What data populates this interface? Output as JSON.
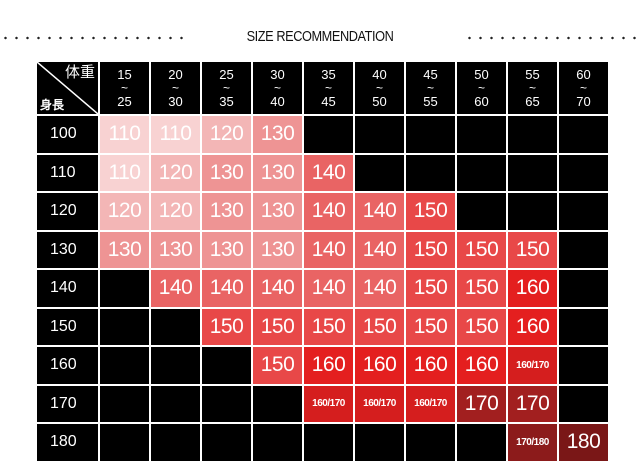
{
  "title": "SIZE RECOMMENDATION",
  "corner": {
    "weight_label": "体重",
    "height_label": "身長"
  },
  "weight_ranges": [
    {
      "from": "15",
      "to": "25"
    },
    {
      "from": "20",
      "to": "30"
    },
    {
      "from": "25",
      "to": "35"
    },
    {
      "from": "30",
      "to": "40"
    },
    {
      "from": "35",
      "to": "45"
    },
    {
      "from": "40",
      "to": "50"
    },
    {
      "from": "45",
      "to": "55"
    },
    {
      "from": "50",
      "to": "60"
    },
    {
      "from": "55",
      "to": "65"
    },
    {
      "from": "60",
      "to": "70"
    }
  ],
  "range_separator": "~",
  "rows": [
    {
      "height": "100",
      "sizes": [
        "110",
        "110",
        "120",
        "130",
        "",
        "",
        "",
        "",
        "",
        ""
      ]
    },
    {
      "height": "110",
      "sizes": [
        "110",
        "120",
        "130",
        "130",
        "140",
        "",
        "",
        "",
        "",
        ""
      ]
    },
    {
      "height": "120",
      "sizes": [
        "120",
        "120",
        "130",
        "130",
        "140",
        "140",
        "150",
        "",
        "",
        ""
      ]
    },
    {
      "height": "130",
      "sizes": [
        "130",
        "130",
        "130",
        "130",
        "140",
        "140",
        "150",
        "150",
        "150",
        ""
      ]
    },
    {
      "height": "140",
      "sizes": [
        "",
        "140",
        "140",
        "140",
        "140",
        "140",
        "150",
        "150",
        "160",
        ""
      ]
    },
    {
      "height": "150",
      "sizes": [
        "",
        "",
        "150",
        "150",
        "150",
        "150",
        "150",
        "150",
        "160",
        ""
      ]
    },
    {
      "height": "160",
      "sizes": [
        "",
        "",
        "",
        "150",
        "160",
        "160",
        "160",
        "160",
        "160/170",
        ""
      ]
    },
    {
      "height": "170",
      "sizes": [
        "",
        "",
        "",
        "",
        "160/170",
        "160/170",
        "160/170",
        "170",
        "170",
        ""
      ]
    },
    {
      "height": "180",
      "sizes": [
        "",
        "",
        "",
        "",
        "",
        "",
        "",
        "",
        "170/180",
        "180"
      ]
    }
  ],
  "colors": {
    "empty": "#000000",
    "110": "#f8d2d2",
    "120": "#f3b6b6",
    "130": "#ee9494",
    "140": "#e96464",
    "150": "#e84848",
    "160": "#e41f1f",
    "160/170": "#d51e1e",
    "170": "#a21f1f",
    "170/180": "#8c1b1b",
    "180": "#7a1717"
  }
}
